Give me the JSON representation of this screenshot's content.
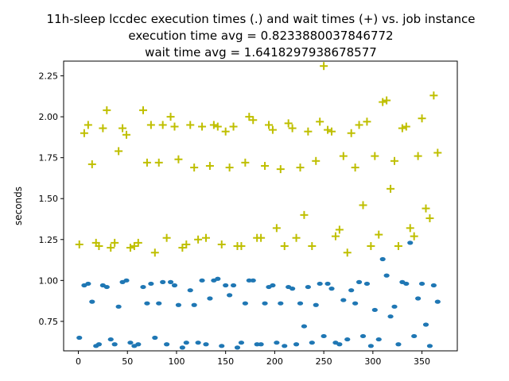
{
  "chart_data": {
    "type": "scatter",
    "title": [
      "11h-sleep lccdec execution times (.) and wait times (+) vs. job instance",
      "execution time avg = 0.8233880037846772",
      "wait time avg = 1.6418297938678577"
    ],
    "xlabel": "",
    "ylabel": "seconds",
    "xlim": [
      -15,
      386
    ],
    "ylim": [
      0.57,
      2.34
    ],
    "xticks": [
      0,
      50,
      100,
      150,
      200,
      250,
      300,
      350
    ],
    "yticks": [
      0.75,
      1.0,
      1.25,
      1.5,
      1.75,
      2.0,
      2.25
    ],
    "ytick_labels": [
      "0.75",
      "1.00",
      "1.25",
      "1.50",
      "1.75",
      "2.00",
      "2.25"
    ],
    "grid": false,
    "series": [
      {
        "marker": ".",
        "color": "#1f77b4",
        "points": [
          [
            1,
            0.65
          ],
          [
            6,
            0.97
          ],
          [
            10,
            0.98
          ],
          [
            14,
            0.87
          ],
          [
            18,
            0.6
          ],
          [
            21,
            0.61
          ],
          [
            25,
            0.97
          ],
          [
            29,
            0.96
          ],
          [
            33,
            0.64
          ],
          [
            37,
            0.61
          ],
          [
            41,
            0.84
          ],
          [
            45,
            0.99
          ],
          [
            49,
            1.0
          ],
          [
            53,
            0.62
          ],
          [
            57,
            0.6
          ],
          [
            61,
            0.61
          ],
          [
            66,
            0.96
          ],
          [
            70,
            0.86
          ],
          [
            74,
            0.98
          ],
          [
            78,
            0.65
          ],
          [
            82,
            0.86
          ],
          [
            86,
            0.99
          ],
          [
            90,
            0.61
          ],
          [
            94,
            0.99
          ],
          [
            98,
            0.97
          ],
          [
            102,
            0.85
          ],
          [
            106,
            0.59
          ],
          [
            110,
            0.62
          ],
          [
            114,
            0.94
          ],
          [
            118,
            0.85
          ],
          [
            122,
            0.62
          ],
          [
            126,
            1.0
          ],
          [
            130,
            0.61
          ],
          [
            134,
            0.89
          ],
          [
            138,
            1.0
          ],
          [
            142,
            1.01
          ],
          [
            146,
            0.6
          ],
          [
            150,
            0.97
          ],
          [
            154,
            0.91
          ],
          [
            158,
            0.97
          ],
          [
            162,
            0.59
          ],
          [
            166,
            0.62
          ],
          [
            170,
            0.86
          ],
          [
            174,
            1.0
          ],
          [
            178,
            1.0
          ],
          [
            182,
            0.61
          ],
          [
            186,
            0.61
          ],
          [
            190,
            0.86
          ],
          [
            194,
            0.96
          ],
          [
            198,
            0.97
          ],
          [
            202,
            0.62
          ],
          [
            206,
            0.86
          ],
          [
            210,
            0.6
          ],
          [
            214,
            0.96
          ],
          [
            218,
            0.95
          ],
          [
            222,
            0.61
          ],
          [
            226,
            0.86
          ],
          [
            230,
            0.72
          ],
          [
            234,
            0.96
          ],
          [
            238,
            0.62
          ],
          [
            242,
            0.85
          ],
          [
            246,
            0.98
          ],
          [
            250,
            0.66
          ],
          [
            254,
            0.98
          ],
          [
            258,
            0.95
          ],
          [
            262,
            0.62
          ],
          [
            266,
            0.61
          ],
          [
            270,
            0.88
          ],
          [
            274,
            0.64
          ],
          [
            278,
            0.94
          ],
          [
            282,
            0.86
          ],
          [
            286,
            0.99
          ],
          [
            290,
            0.66
          ],
          [
            294,
            0.98
          ],
          [
            298,
            0.6
          ],
          [
            302,
            0.82
          ],
          [
            306,
            0.64
          ],
          [
            310,
            1.13
          ],
          [
            314,
            1.03
          ],
          [
            318,
            0.78
          ],
          [
            322,
            0.84
          ],
          [
            326,
            0.61
          ],
          [
            330,
            0.99
          ],
          [
            334,
            0.98
          ],
          [
            338,
            1.23
          ],
          [
            342,
            0.66
          ],
          [
            346,
            0.89
          ],
          [
            350,
            0.98
          ],
          [
            354,
            0.73
          ],
          [
            358,
            0.6
          ],
          [
            362,
            0.97
          ],
          [
            366,
            0.87
          ]
        ]
      },
      {
        "marker": "+",
        "color": "#bfbf00",
        "points": [
          [
            1,
            1.22
          ],
          [
            6,
            1.9
          ],
          [
            10,
            1.95
          ],
          [
            14,
            1.71
          ],
          [
            18,
            1.23
          ],
          [
            21,
            1.21
          ],
          [
            25,
            1.93
          ],
          [
            29,
            2.04
          ],
          [
            33,
            1.2
          ],
          [
            37,
            1.23
          ],
          [
            41,
            1.79
          ],
          [
            45,
            1.93
          ],
          [
            49,
            1.89
          ],
          [
            53,
            1.2
          ],
          [
            57,
            1.21
          ],
          [
            61,
            1.23
          ],
          [
            66,
            2.04
          ],
          [
            70,
            1.72
          ],
          [
            74,
            1.95
          ],
          [
            78,
            1.17
          ],
          [
            82,
            1.72
          ],
          [
            86,
            1.95
          ],
          [
            90,
            1.26
          ],
          [
            94,
            2.0
          ],
          [
            98,
            1.94
          ],
          [
            102,
            1.74
          ],
          [
            106,
            1.2
          ],
          [
            110,
            1.22
          ],
          [
            114,
            1.95
          ],
          [
            118,
            1.69
          ],
          [
            122,
            1.25
          ],
          [
            126,
            1.94
          ],
          [
            130,
            1.26
          ],
          [
            134,
            1.7
          ],
          [
            138,
            1.95
          ],
          [
            142,
            1.94
          ],
          [
            146,
            1.22
          ],
          [
            150,
            1.91
          ],
          [
            154,
            1.69
          ],
          [
            158,
            1.94
          ],
          [
            162,
            1.21
          ],
          [
            166,
            1.21
          ],
          [
            170,
            1.72
          ],
          [
            174,
            2.0
          ],
          [
            178,
            1.98
          ],
          [
            182,
            1.26
          ],
          [
            186,
            1.26
          ],
          [
            190,
            1.7
          ],
          [
            194,
            1.95
          ],
          [
            198,
            1.92
          ],
          [
            202,
            1.32
          ],
          [
            206,
            1.68
          ],
          [
            210,
            1.21
          ],
          [
            214,
            1.96
          ],
          [
            218,
            1.93
          ],
          [
            222,
            1.26
          ],
          [
            226,
            1.69
          ],
          [
            230,
            1.4
          ],
          [
            234,
            1.91
          ],
          [
            238,
            1.21
          ],
          [
            242,
            1.73
          ],
          [
            246,
            1.97
          ],
          [
            250,
            2.31
          ],
          [
            254,
            1.92
          ],
          [
            258,
            1.91
          ],
          [
            262,
            1.27
          ],
          [
            266,
            1.31
          ],
          [
            270,
            1.76
          ],
          [
            274,
            1.17
          ],
          [
            278,
            1.9
          ],
          [
            282,
            1.69
          ],
          [
            286,
            1.95
          ],
          [
            290,
            1.46
          ],
          [
            294,
            1.97
          ],
          [
            298,
            1.21
          ],
          [
            302,
            1.76
          ],
          [
            306,
            1.28
          ],
          [
            310,
            2.09
          ],
          [
            314,
            2.1
          ],
          [
            318,
            1.56
          ],
          [
            322,
            1.73
          ],
          [
            326,
            1.21
          ],
          [
            330,
            1.93
          ],
          [
            334,
            1.94
          ],
          [
            338,
            1.32
          ],
          [
            342,
            1.27
          ],
          [
            346,
            1.76
          ],
          [
            350,
            1.99
          ],
          [
            354,
            1.44
          ],
          [
            358,
            1.38
          ],
          [
            362,
            2.13
          ],
          [
            366,
            1.78
          ]
        ]
      }
    ]
  }
}
